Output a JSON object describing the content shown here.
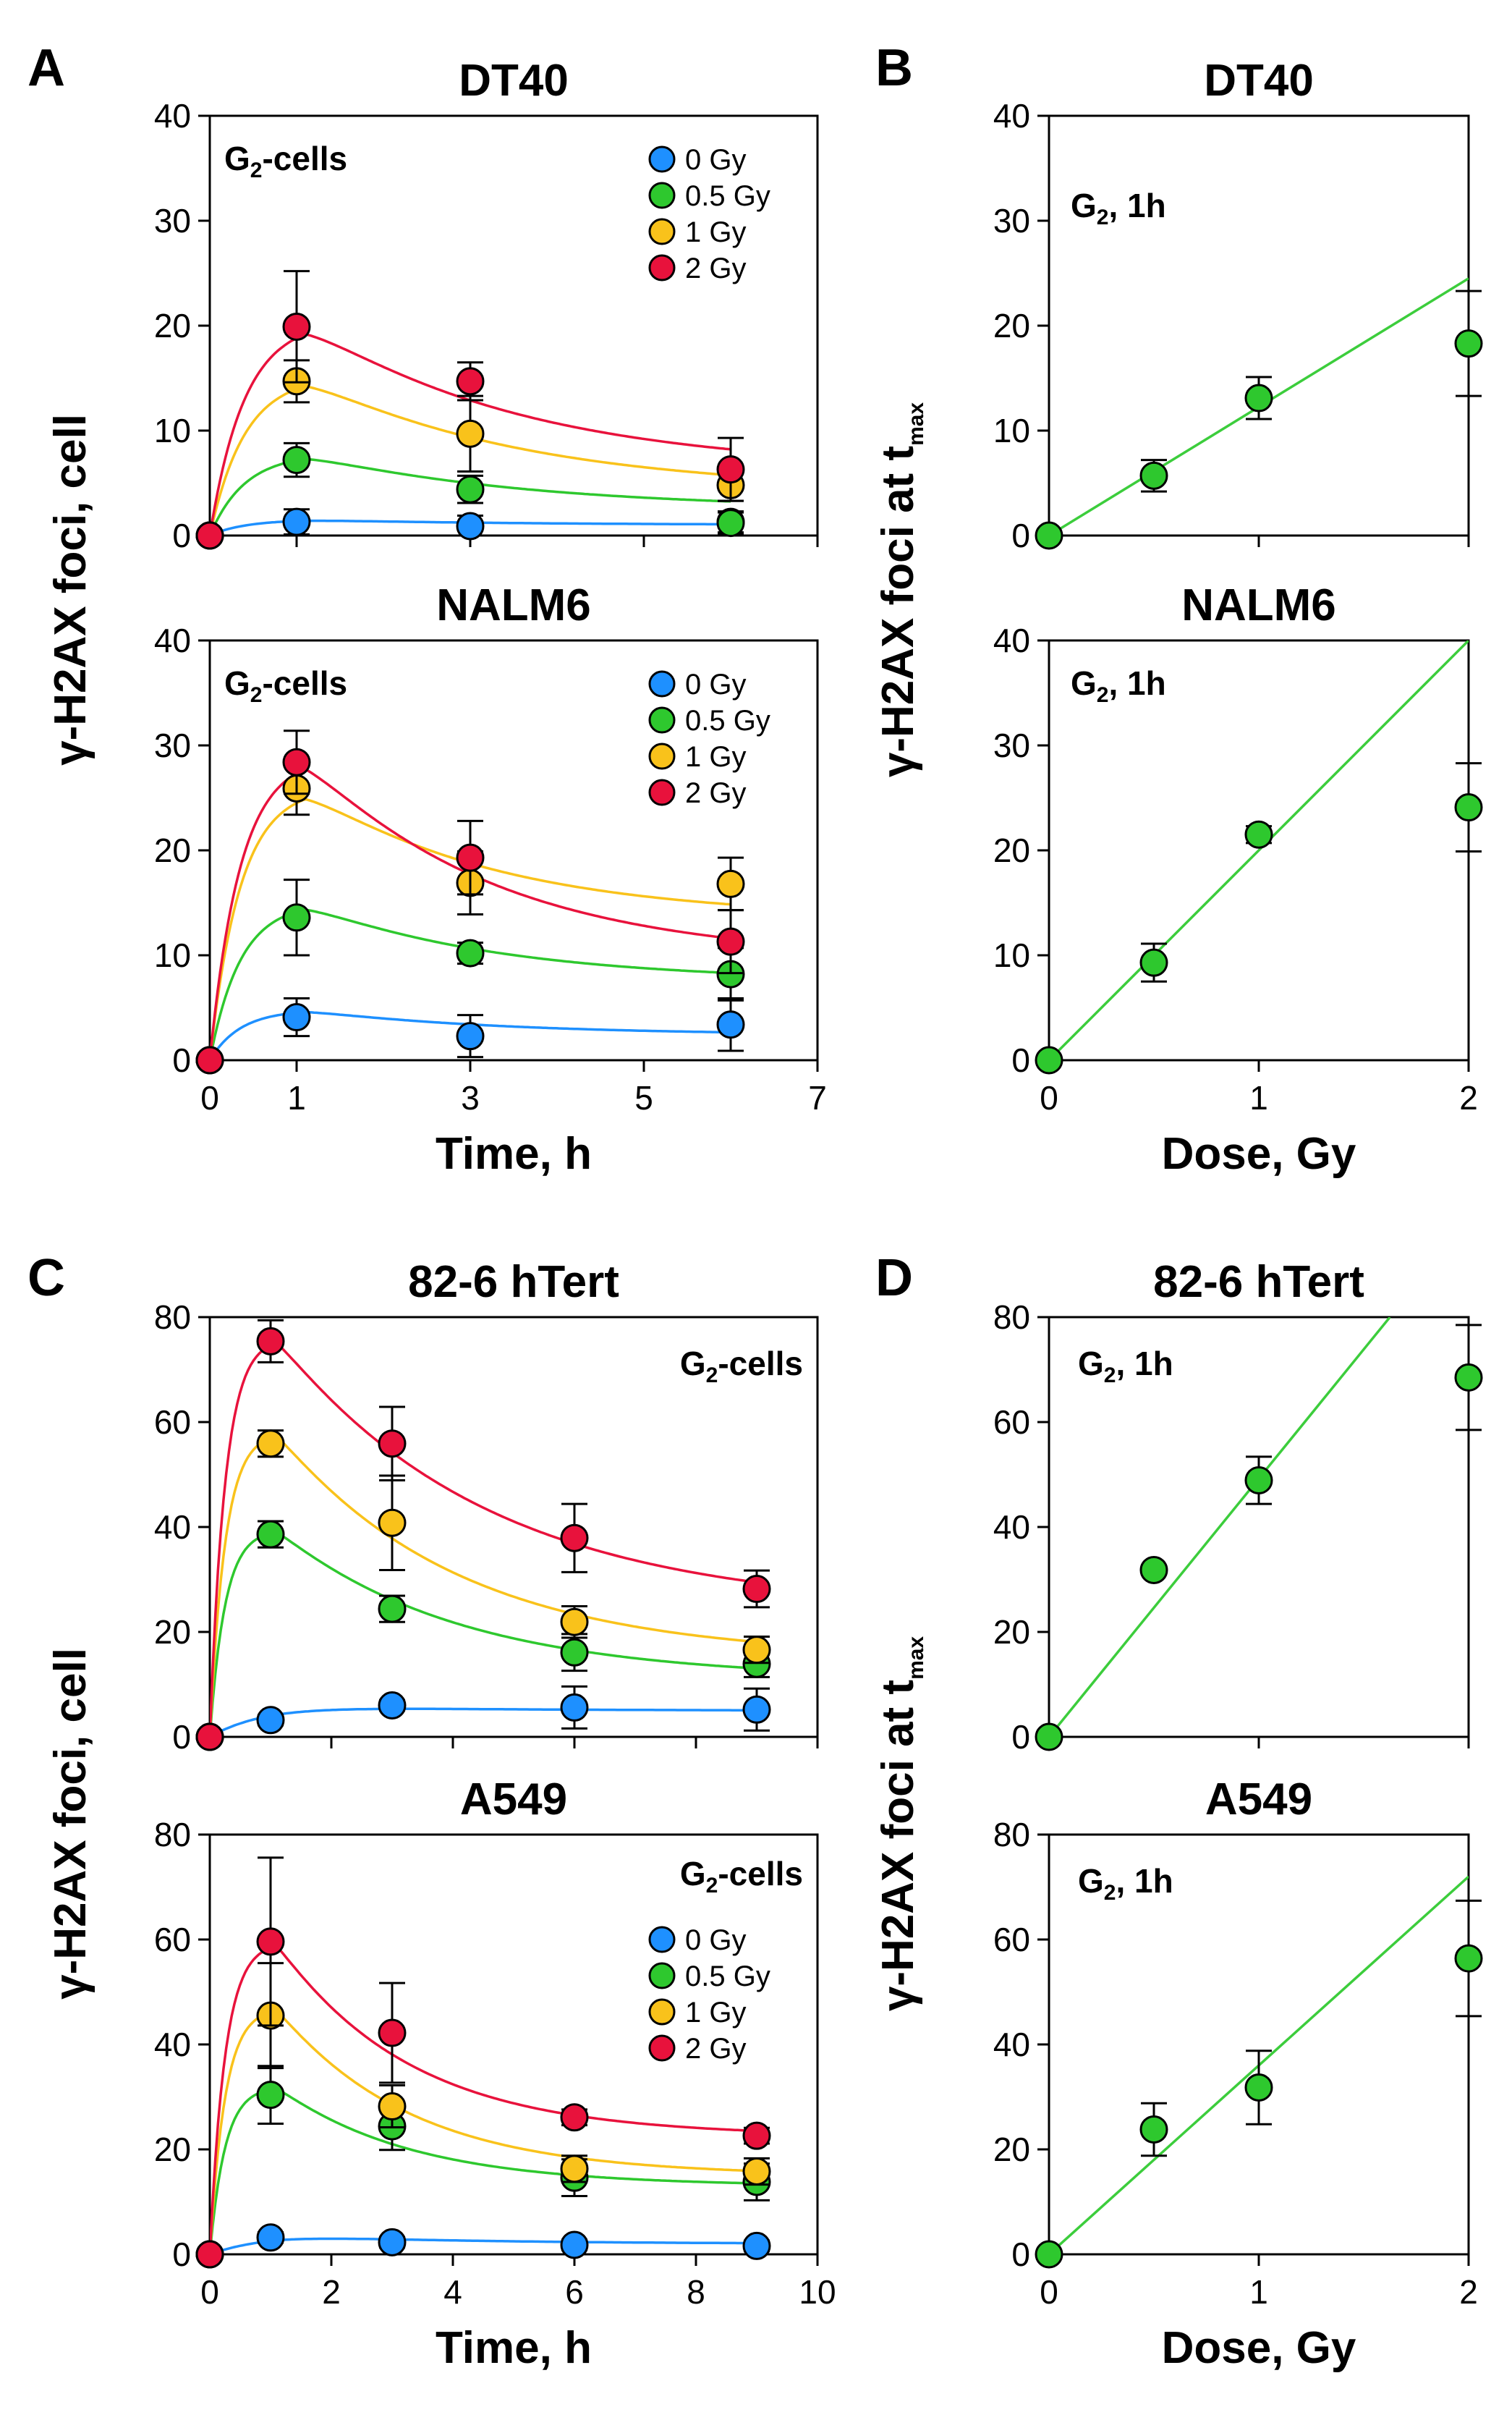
{
  "colors": {
    "dose_0": "#1e90ff",
    "dose_0_5": "#2ec82e",
    "dose_1": "#f9c21b",
    "dose_2": "#e8123c",
    "fit_line_green": "#3ccd3c",
    "axis": "#000000"
  },
  "panels": {
    "A": "A",
    "B": "B",
    "C": "C",
    "D": "D"
  },
  "axis_labels": {
    "y_left": "γ-H2AX foci, cell",
    "y_right": "γ-H2AX foci at t",
    "y_right_sub": "max",
    "time": "Time, h",
    "dose": "Dose, Gy"
  },
  "annotations": {
    "g2_cells": "-cells",
    "g2_1h": ", 1h",
    "g": "G",
    "two": "2"
  },
  "chart_data": [
    {
      "id": "A_top",
      "type": "scatter",
      "title": "DT40",
      "annotation": "G2-cells",
      "xlim": [
        0,
        7
      ],
      "ylim": [
        0,
        40
      ],
      "xticks": [],
      "yticks": [
        0,
        10,
        20,
        30,
        40
      ],
      "legend": [
        "0 Gy",
        "0.5 Gy",
        "1 Gy",
        "2 Gy"
      ],
      "series": [
        {
          "name": "0 Gy",
          "color_key": "dose_0",
          "x": [
            0,
            1,
            3,
            6
          ],
          "y": [
            0,
            1.3,
            0.9,
            1.3
          ],
          "err": [
            0,
            1.2,
            1.0,
            1.0
          ]
        },
        {
          "name": "0.5 Gy",
          "color_key": "dose_0_5",
          "x": [
            0,
            1,
            3,
            6
          ],
          "y": [
            0,
            7.2,
            4.4,
            1.2
          ],
          "err": [
            0,
            1.6,
            1.3,
            1.0
          ]
        },
        {
          "name": "1 Gy",
          "color_key": "dose_1",
          "x": [
            0,
            1,
            3,
            6
          ],
          "y": [
            0,
            14.7,
            9.7,
            4.8
          ],
          "err": [
            0,
            2.0,
            3.6,
            1.5
          ]
        },
        {
          "name": "2 Gy",
          "color_key": "dose_2",
          "x": [
            0,
            1,
            3,
            6
          ],
          "y": [
            0,
            19.9,
            14.7,
            6.3
          ],
          "err": [
            0,
            5.3,
            1.8,
            3.0
          ]
        }
      ],
      "fits": [
        {
          "color_key": "dose_0",
          "params": [
            1.5,
            0.4,
            2.5,
            1.0
          ]
        },
        {
          "color_key": "dose_0_5",
          "params": [
            7.8,
            0.4,
            2.5,
            2.5
          ]
        },
        {
          "color_key": "dose_1",
          "params": [
            15.2,
            0.4,
            2.5,
            4.2
          ]
        },
        {
          "color_key": "dose_2",
          "params": [
            20.5,
            0.4,
            2.5,
            6.2
          ]
        }
      ]
    },
    {
      "id": "A_bottom",
      "type": "scatter",
      "title": "NALM6",
      "annotation": "G2-cells",
      "xlim": [
        0,
        7
      ],
      "ylim": [
        0,
        40
      ],
      "xticks": [
        0,
        1,
        3,
        5,
        7
      ],
      "yticks": [
        0,
        10,
        20,
        30,
        40
      ],
      "xlabel": "Time, h",
      "legend": [
        "0 Gy",
        "0.5 Gy",
        "1 Gy",
        "2 Gy"
      ],
      "series": [
        {
          "name": "0 Gy",
          "color_key": "dose_0",
          "x": [
            0,
            1,
            3,
            6
          ],
          "y": [
            0,
            4.1,
            2.3,
            3.4
          ],
          "err": [
            0,
            1.8,
            2.0,
            2.5
          ]
        },
        {
          "name": "0.5 Gy",
          "color_key": "dose_0_5",
          "x": [
            0,
            1,
            3,
            6
          ],
          "y": [
            0,
            13.6,
            10.2,
            8.2
          ],
          "err": [
            0,
            3.6,
            1.0,
            2.5
          ]
        },
        {
          "name": "1 Gy",
          "color_key": "dose_1",
          "x": [
            0,
            1,
            3,
            6
          ],
          "y": [
            0,
            25.9,
            16.9,
            16.8
          ],
          "err": [
            0,
            2.5,
            3.0,
            2.5
          ]
        },
        {
          "name": "2 Gy",
          "color_key": "dose_2",
          "x": [
            0,
            1,
            3,
            6
          ],
          "y": [
            0,
            28.4,
            19.3,
            11.3
          ],
          "err": [
            0,
            3.0,
            3.5,
            3.0
          ]
        }
      ],
      "fits": [
        {
          "color_key": "dose_0",
          "params": [
            4.8,
            0.35,
            2.2,
            2.4
          ]
        },
        {
          "color_key": "dose_0_5",
          "params": [
            15.0,
            0.35,
            2.2,
            7.5
          ]
        },
        {
          "color_key": "dose_1",
          "params": [
            26.0,
            0.35,
            2.2,
            13.5
          ]
        },
        {
          "color_key": "dose_2",
          "params": [
            29.0,
            0.35,
            2.2,
            9.5
          ]
        }
      ]
    },
    {
      "id": "B_top",
      "type": "scatter",
      "title": "DT40",
      "annotation": "G2, 1h",
      "xlim": [
        0,
        2
      ],
      "ylim": [
        0,
        40
      ],
      "xticks": [],
      "yticks": [
        0,
        10,
        20,
        30,
        40
      ],
      "series": [
        {
          "name": "G2 1h",
          "color_key": "dose_0_5",
          "x": [
            0,
            0.5,
            1,
            2
          ],
          "y": [
            0,
            5.7,
            13.1,
            18.3
          ],
          "err": [
            0,
            1.5,
            2.0,
            5.0
          ]
        }
      ],
      "line": {
        "color_key": "fit_line_green",
        "x": [
          0,
          2
        ],
        "y": [
          0,
          24.5
        ]
      }
    },
    {
      "id": "B_bottom",
      "type": "scatter",
      "title": "NALM6",
      "annotation": "G2, 1h",
      "xlim": [
        0,
        2
      ],
      "ylim": [
        0,
        40
      ],
      "xticks": [
        0,
        1,
        2
      ],
      "yticks": [
        0,
        10,
        20,
        30,
        40
      ],
      "xlabel": "Dose, Gy",
      "series": [
        {
          "name": "G2 1h",
          "color_key": "dose_0_5",
          "x": [
            0,
            0.5,
            1,
            2
          ],
          "y": [
            0,
            9.3,
            21.5,
            24.1
          ],
          "err": [
            0,
            1.8,
            0.8,
            4.2
          ]
        }
      ],
      "line": {
        "color_key": "fit_line_green",
        "x": [
          0,
          2
        ],
        "y": [
          0,
          40
        ]
      }
    },
    {
      "id": "C_top",
      "type": "scatter",
      "title": "82-6 hTert",
      "annotation": "G2-cells",
      "xlim": [
        0,
        10
      ],
      "ylim": [
        0,
        80
      ],
      "xticks": [],
      "yticks": [
        0,
        20,
        40,
        60,
        80
      ],
      "series": [
        {
          "name": "0 Gy",
          "color_key": "dose_0",
          "x": [
            0,
            1,
            3,
            6,
            9
          ],
          "y": [
            0,
            3.2,
            6.0,
            5.6,
            5.2
          ],
          "err": [
            0,
            1.0,
            1.0,
            4.0,
            4.0
          ]
        },
        {
          "name": "0.5 Gy",
          "color_key": "dose_0_5",
          "x": [
            0,
            1,
            3,
            6,
            9
          ],
          "y": [
            0,
            38.6,
            24.4,
            16.1,
            13.9
          ],
          "err": [
            0,
            2.5,
            2.5,
            3.5,
            2.5
          ]
        },
        {
          "name": "1 Gy",
          "color_key": "dose_1",
          "x": [
            0,
            1,
            3,
            6,
            9
          ],
          "y": [
            0,
            55.9,
            40.8,
            21.9,
            16.6
          ],
          "err": [
            0,
            2.5,
            9.0,
            3.0,
            2.5
          ]
        },
        {
          "name": "2 Gy",
          "color_key": "dose_2",
          "x": [
            0,
            1,
            3,
            6,
            9
          ],
          "y": [
            0,
            75.4,
            55.9,
            37.9,
            28.2
          ],
          "err": [
            0,
            4.0,
            7.0,
            6.5,
            3.5
          ]
        }
      ],
      "fits": [
        {
          "color_key": "dose_0",
          "params": [
            6.0,
            0.9,
            3.0,
            5.0
          ]
        },
        {
          "color_key": "dose_0_5",
          "params": [
            39.5,
            0.25,
            3.0,
            11.0
          ]
        },
        {
          "color_key": "dose_1",
          "params": [
            58.0,
            0.25,
            3.0,
            15.0
          ]
        },
        {
          "color_key": "dose_2",
          "params": [
            76.0,
            0.25,
            3.5,
            24.0
          ]
        }
      ]
    },
    {
      "id": "C_bottom",
      "type": "scatter",
      "title": "A549",
      "annotation": "G2-cells",
      "xlim": [
        0,
        10
      ],
      "ylim": [
        0,
        80
      ],
      "xticks": [
        0,
        2,
        4,
        6,
        8,
        10
      ],
      "yticks": [
        0,
        20,
        40,
        60,
        80
      ],
      "xlabel": "Time, h",
      "legend": [
        "0 Gy",
        "0.5 Gy",
        "1 Gy",
        "2 Gy"
      ],
      "series": [
        {
          "name": "0 Gy",
          "color_key": "dose_0",
          "x": [
            0,
            1,
            3,
            6,
            9
          ],
          "y": [
            0,
            3.2,
            2.3,
            1.8,
            1.6
          ],
          "err": [
            0,
            1.0,
            1.0,
            1.0,
            1.0
          ]
        },
        {
          "name": "0.5 Gy",
          "color_key": "dose_0_5",
          "x": [
            0,
            1,
            3,
            6,
            9
          ],
          "y": [
            0,
            30.4,
            24.4,
            14.6,
            13.8
          ],
          "err": [
            0,
            5.5,
            4.5,
            3.5,
            3.5
          ]
        },
        {
          "name": "1 Gy",
          "color_key": "dose_1",
          "x": [
            0,
            1,
            3,
            6,
            9
          ],
          "y": [
            0,
            45.5,
            28.2,
            16.3,
            15.8
          ],
          "err": [
            0,
            10.0,
            4.0,
            2.5,
            2.5
          ]
        },
        {
          "name": "2 Gy",
          "color_key": "dose_2",
          "x": [
            0,
            1,
            3,
            6,
            9
          ],
          "y": [
            0,
            59.6,
            42.2,
            26.1,
            22.6
          ],
          "err": [
            0,
            16.0,
            9.5,
            1.5,
            1.5
          ]
        }
      ],
      "fits": [
        {
          "color_key": "dose_0",
          "params": [
            3.8,
            0.9,
            3.0,
            2.0
          ]
        },
        {
          "color_key": "dose_0_5",
          "params": [
            32.0,
            0.25,
            2.2,
            13.0
          ]
        },
        {
          "color_key": "dose_1",
          "params": [
            47.0,
            0.25,
            2.2,
            15.0
          ]
        },
        {
          "color_key": "dose_2",
          "params": [
            59.5,
            0.25,
            2.2,
            22.5
          ]
        }
      ]
    },
    {
      "id": "D_top",
      "type": "scatter",
      "title": "82-6 hTert",
      "annotation": "G2, 1h",
      "xlim": [
        0,
        2
      ],
      "ylim": [
        0,
        80
      ],
      "xticks": [],
      "yticks": [
        0,
        20,
        40,
        60,
        80
      ],
      "series": [
        {
          "name": "G2 1h",
          "color_key": "dose_0_5",
          "x": [
            0,
            0.5,
            1,
            2
          ],
          "y": [
            0,
            31.8,
            48.9,
            68.5
          ],
          "err": [
            0,
            0,
            4.5,
            10.0
          ]
        }
      ],
      "line": {
        "color_key": "fit_line_green",
        "x": [
          0,
          1.625
        ],
        "y": [
          0,
          80
        ]
      }
    },
    {
      "id": "D_bottom",
      "type": "scatter",
      "title": "A549",
      "annotation": "G2, 1h",
      "xlim": [
        0,
        2
      ],
      "ylim": [
        0,
        80
      ],
      "xticks": [
        0,
        1,
        2
      ],
      "yticks": [
        0,
        20,
        40,
        60,
        80
      ],
      "xlabel": "Dose, Gy",
      "series": [
        {
          "name": "G2 1h",
          "color_key": "dose_0_5",
          "x": [
            0,
            0.5,
            1,
            2
          ],
          "y": [
            0,
            23.8,
            31.8,
            56.4
          ],
          "err": [
            0,
            5.0,
            7.0,
            11.0
          ]
        }
      ],
      "line": {
        "color_key": "fit_line_green",
        "x": [
          0,
          2
        ],
        "y": [
          0,
          72
        ]
      }
    }
  ]
}
